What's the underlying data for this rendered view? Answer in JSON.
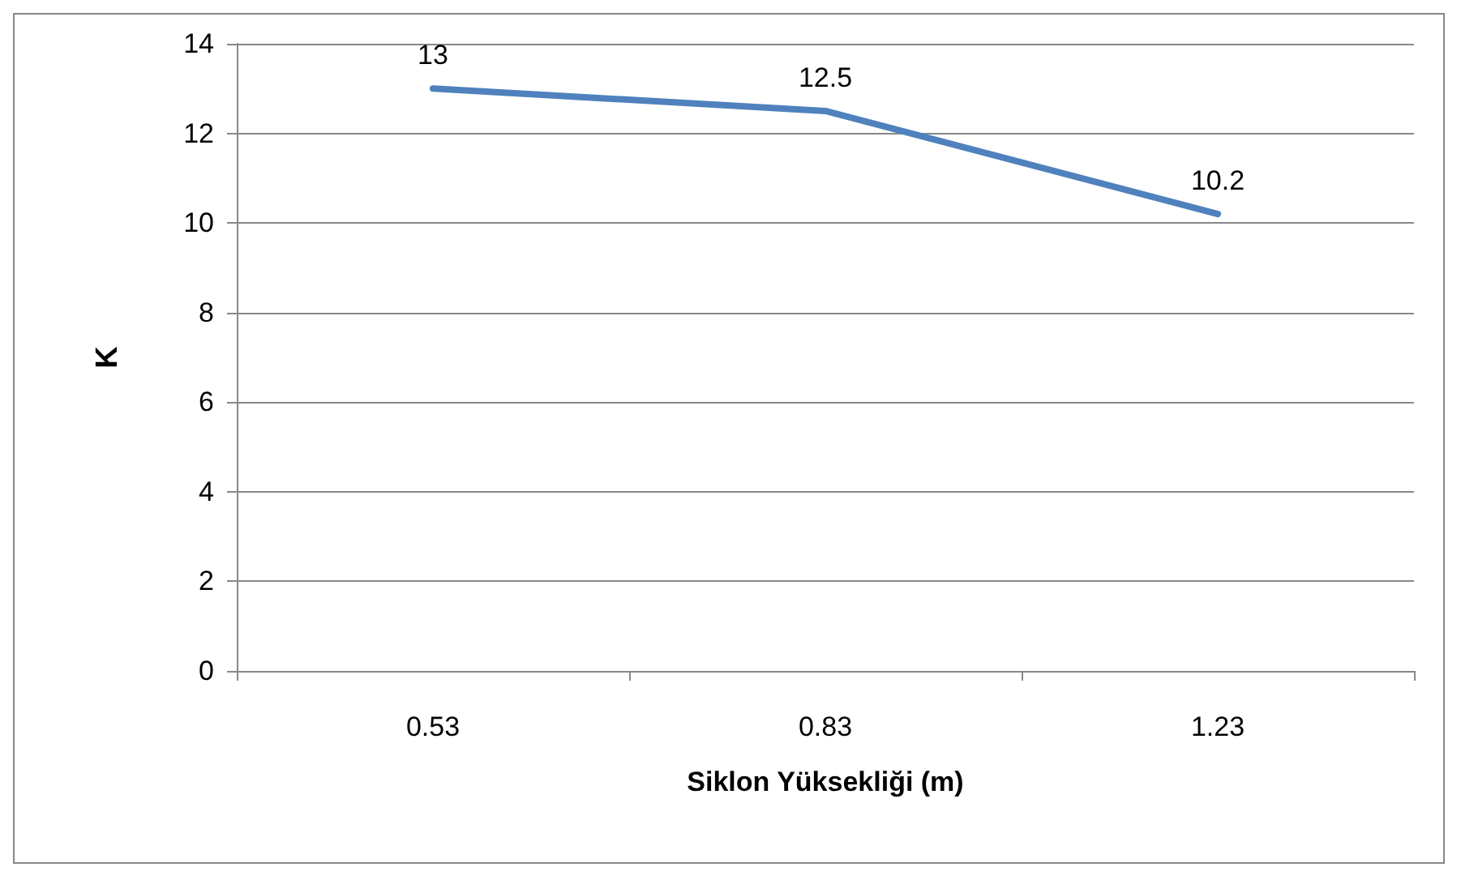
{
  "chart_data": {
    "type": "line",
    "xlabel": "Siklon Yüksekliği (m)",
    "ylabel": "K",
    "categories": [
      "0.53",
      "0.83",
      "1.23"
    ],
    "series": [
      {
        "color": "#4f81bd",
        "values": [
          13,
          12.5,
          10.2
        ]
      }
    ],
    "ylim": [
      0,
      14
    ],
    "yticks": [
      0,
      2,
      4,
      6,
      8,
      10,
      12,
      14
    ],
    "grid": "y",
    "data_labels": true,
    "marker": "none",
    "line_style": "solid"
  }
}
